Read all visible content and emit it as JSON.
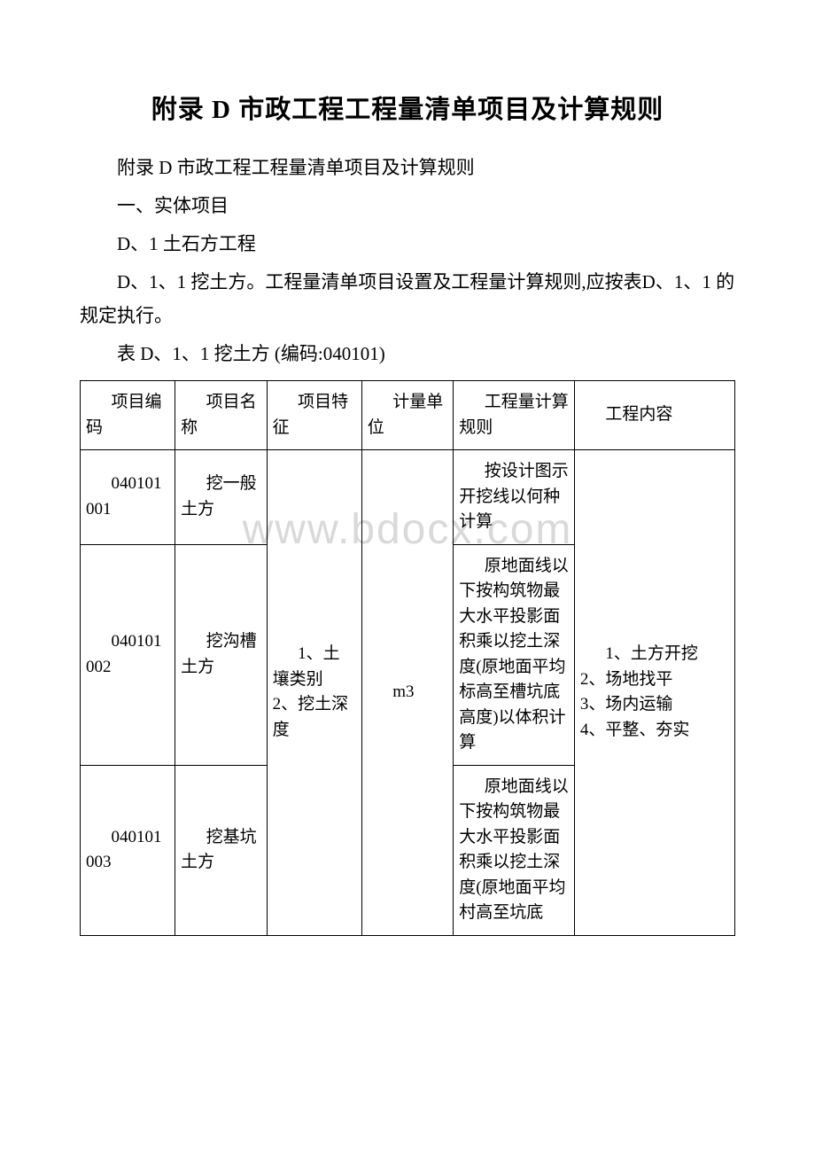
{
  "watermark": "www.bdocx.com",
  "title": "附录 D 市政工程工程量清单项目及计算规则",
  "paragraphs": {
    "p1": "附录 D 市政工程工程量清单项目及计算规则",
    "p2": "一、实体项目",
    "p3": "D、1 土石方工程",
    "p4": "D、1、1 挖土方。工程量清单项目设置及工程量计算规则,应按表D、1、1 的规定执行。",
    "caption": "表 D、1、1 挖土方 (编码:040101)"
  },
  "table": {
    "headers": {
      "h1": "项目编码",
      "h2": "项目名称",
      "h3": "项目特征",
      "h4": "计量单位",
      "h5": "工程量计算规则",
      "h6": "工程内容"
    },
    "rows": {
      "r1": {
        "code": "040101001",
        "name": "挖一般土方",
        "rule": "按设计图示开挖线以何种计算"
      },
      "r2": {
        "code": "040101002",
        "name": "挖沟槽土方",
        "rule": "原地面线以下按构筑物最大水平投影面积乘以挖土深度(原地面平均标高至槽坑底高度)以体积计算"
      },
      "r3": {
        "code": "040101003",
        "name": "挖基坑土方",
        "rule": "原地面线以下按构筑物最大水平投影面积乘以挖土深度(原地面平均村高至坑底"
      }
    },
    "merged": {
      "feature": "1、土壤类别\n2、挖土深度",
      "unit": "m3",
      "content": "1、土方开挖\n2、场地找平\n3、场内运输\n4、平整、夯实"
    }
  },
  "styles": {
    "background_color": "#ffffff",
    "text_color": "#000000",
    "border_color": "#000000",
    "watermark_color": "#d9d9d9",
    "title_fontsize": 29,
    "body_fontsize": 21,
    "table_fontsize": 19,
    "font_family": "SimSun"
  }
}
